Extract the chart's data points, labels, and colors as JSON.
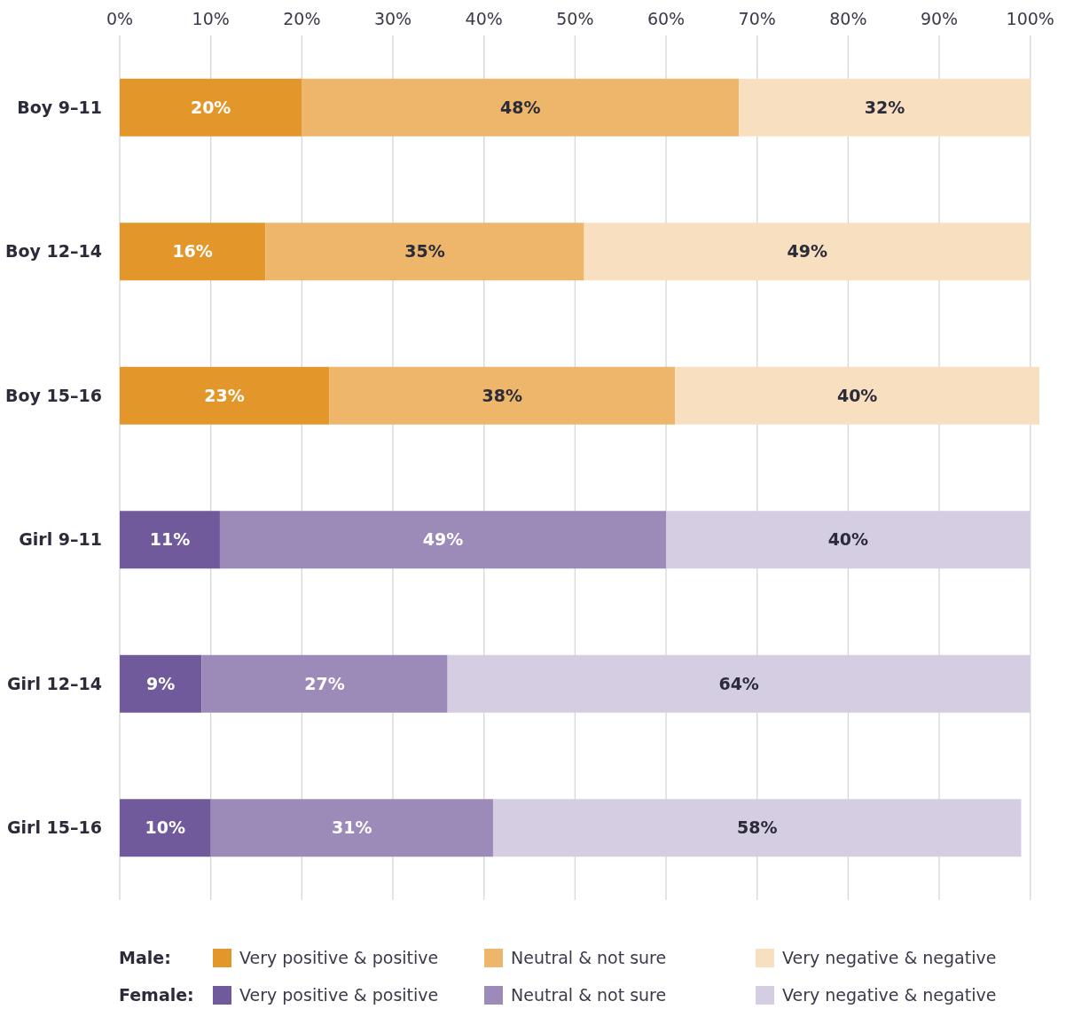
{
  "chart_data": {
    "type": "bar",
    "orientation": "horizontal",
    "stacked": true,
    "categories": [
      "Boy 9–11",
      "Boy 12–14",
      "Boy 15–16",
      "Girl 9–11",
      "Girl 12–14",
      "Girl 15–16"
    ],
    "series": [
      {
        "name": "Very positive & positive",
        "color": "#e3972a",
        "values": [
          20,
          16,
          23,
          null,
          null,
          null
        ],
        "value_labels": [
          "20%",
          "16%",
          "23%",
          null,
          null,
          null
        ]
      },
      {
        "name": "Neutral & not sure",
        "color": "#edb66b",
        "values": [
          48,
          35,
          38,
          null,
          null,
          null
        ],
        "value_labels": [
          "48%",
          "35%",
          "38%",
          null,
          null,
          null
        ]
      },
      {
        "name": "Very negative & negative",
        "color": "#f7dfbf",
        "values": [
          32,
          49,
          40,
          null,
          null,
          null
        ],
        "value_labels": [
          "32%",
          "49%",
          "40%",
          null,
          null,
          null
        ]
      },
      {
        "name": "Very positive & positive",
        "color": "#705a9c",
        "values": [
          null,
          null,
          null,
          11,
          9,
          10
        ],
        "value_labels": [
          null,
          null,
          null,
          "11%",
          "9%",
          "10%"
        ]
      },
      {
        "name": "Neutral & not sure",
        "color": "#9c8bb9",
        "values": [
          null,
          null,
          null,
          49,
          27,
          31
        ],
        "value_labels": [
          null,
          null,
          null,
          "49%",
          "27%",
          "31%"
        ]
      },
      {
        "name": "Very negative & negative",
        "color": "#d5cde2",
        "values": [
          null,
          null,
          null,
          40,
          64,
          58
        ],
        "value_labels": [
          null,
          null,
          null,
          "40%",
          "64%",
          "58%"
        ]
      }
    ],
    "xlim": [
      0,
      101
    ],
    "xticks": [
      {
        "value": 0,
        "label": "0%"
      },
      {
        "value": 10,
        "label": "10%"
      },
      {
        "value": 20,
        "label": "20%"
      },
      {
        "value": 30,
        "label": "30%"
      },
      {
        "value": 40,
        "label": "40%"
      },
      {
        "value": 50,
        "label": "50%"
      },
      {
        "value": 60,
        "label": "60%"
      },
      {
        "value": 70,
        "label": "70%"
      },
      {
        "value": 80,
        "label": "80%"
      },
      {
        "value": 90,
        "label": "90%"
      },
      {
        "value": 100,
        "label": "100%"
      }
    ],
    "grid": "x",
    "legend": "bottom",
    "annotations": [
      "Male:",
      "Female:"
    ]
  }
}
